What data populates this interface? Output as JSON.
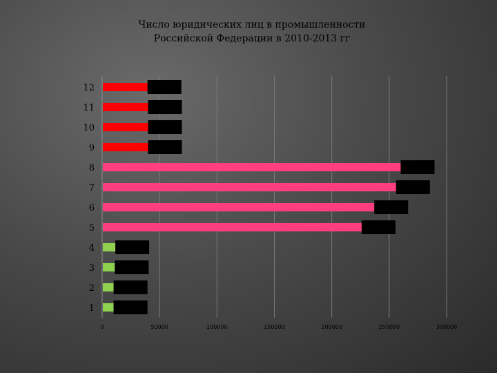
{
  "chart_data": {
    "type": "bar",
    "orientation": "horizontal",
    "title_lines": [
      "Число юридических лиц в промышленности",
      "Российской Федерации в 2010-2013 гг"
    ],
    "categories": [
      "1",
      "2",
      "3",
      "4",
      "5",
      "6",
      "7",
      "8",
      "9",
      "10",
      "11",
      "12"
    ],
    "values": [
      10000,
      10000,
      11000,
      11500,
      226000,
      237000,
      256000,
      260000,
      40000,
      40000,
      40000,
      39500
    ],
    "bar_colors": [
      "#8fd14f",
      "#8fd14f",
      "#8fd14f",
      "#8fd14f",
      "#ff3d7f",
      "#ff3d7f",
      "#ff3d7f",
      "#ff3d7f",
      "#ff0000",
      "#ff0000",
      "#ff0000",
      "#ff0000"
    ],
    "xlim": [
      0,
      300000
    ],
    "xticks": [
      "0",
      "50000",
      "100000",
      "150000",
      "200000",
      "250000",
      "300000"
    ],
    "xtick_values": [
      0,
      50000,
      100000,
      150000,
      200000,
      250000,
      300000
    ],
    "grid": "vertical",
    "data_labels_obscured": true,
    "label_box_color": "#000000"
  }
}
